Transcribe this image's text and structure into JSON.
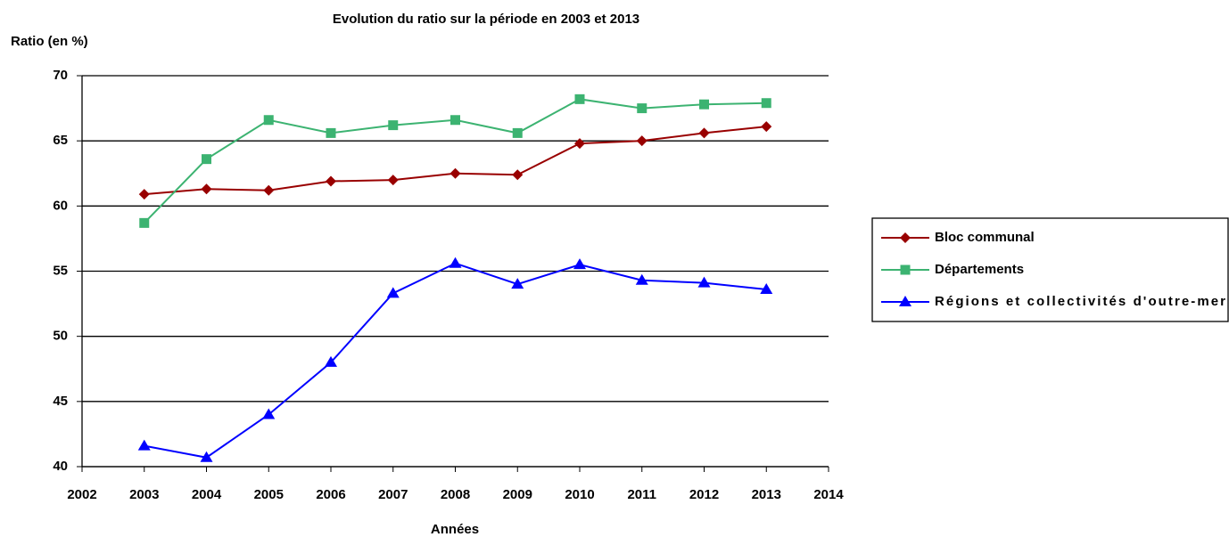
{
  "chart_data": {
    "type": "line",
    "title": "Evolution du ratio sur la période en 2003 et 2013",
    "y_label": "Ratio (en %)",
    "x_label": "Années",
    "x": [
      2003,
      2004,
      2005,
      2006,
      2007,
      2008,
      2009,
      2010,
      2011,
      2012,
      2013
    ],
    "series": [
      {
        "name": "Bloc communal",
        "color": "#990000",
        "marker": "diamond",
        "values": [
          60.9,
          61.3,
          61.2,
          61.9,
          62.0,
          62.5,
          62.4,
          64.8,
          65.0,
          65.6,
          66.1
        ]
      },
      {
        "name": "Départements",
        "color": "#3cb371",
        "marker": "square",
        "values": [
          58.7,
          63.6,
          66.6,
          65.6,
          66.2,
          66.6,
          65.6,
          68.2,
          67.5,
          67.8,
          67.9
        ]
      },
      {
        "name": "Régions et collectivités d'outre-mer",
        "color": "#0000ff",
        "marker": "triangle",
        "values": [
          41.6,
          40.7,
          44.0,
          48.0,
          53.3,
          55.6,
          54.0,
          55.5,
          54.3,
          54.1,
          53.6
        ]
      }
    ],
    "xlim": [
      2002,
      2014
    ],
    "xticks": [
      2002,
      2003,
      2004,
      2005,
      2006,
      2007,
      2008,
      2009,
      2010,
      2011,
      2012,
      2013,
      2014
    ],
    "ylim": [
      40,
      70
    ],
    "yticks": [
      40,
      45,
      50,
      55,
      60,
      65,
      70
    ],
    "grid": true,
    "legend": "right"
  }
}
